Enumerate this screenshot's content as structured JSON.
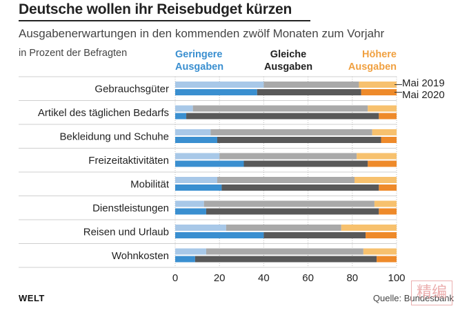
{
  "title": "Deutsche wollen ihr Reisebudget kürzen",
  "subtitle": "Ausgabenerwartungen in den kommenden zwölf Monaten zum Vorjahr",
  "unit_note": "in Prozent der Befragten",
  "legend": {
    "low": [
      "Geringere",
      "Ausgaben"
    ],
    "same": [
      "Gleiche",
      "Ausgaben"
    ],
    "high": [
      "Höhere",
      "Ausgaben"
    ],
    "series_2019": "Mai 2019",
    "series_2020": "Mai 2020"
  },
  "colors": {
    "low_2019": "#a8c8e8",
    "low_2020": "#3a8fd0",
    "same_2019": "#a9a9a9",
    "same_2020": "#595959",
    "high_2019": "#f7c16e",
    "high_2020": "#ee8a2a",
    "text": "#222222",
    "grid": "#bbbbbb"
  },
  "chart_data": {
    "type": "bar",
    "orientation": "horizontal",
    "stacked": true,
    "xlim": [
      0,
      100
    ],
    "xticks": [
      "0",
      "20",
      "40",
      "60",
      "80",
      "100"
    ],
    "categories": [
      "Gebrauchsgüter",
      "Artikel des täglichen Bedarfs",
      "Bekleidung und Schuhe",
      "Freizeitaktivitäten",
      "Mobilität",
      "Dienstleistungen",
      "Reisen und Urlaub",
      "Wohnkosten"
    ],
    "series": [
      {
        "name": "Mai 2019",
        "segments": {
          "Geringere Ausgaben": [
            40,
            8,
            16,
            20,
            19,
            13,
            23,
            14
          ],
          "Gleiche Ausgaben": [
            43,
            79,
            73,
            62,
            62,
            77,
            52,
            71
          ],
          "Höhere Ausgaben": [
            17,
            13,
            11,
            18,
            19,
            10,
            25,
            15
          ]
        }
      },
      {
        "name": "Mai 2020",
        "segments": {
          "Geringere Ausgaben": [
            37,
            5,
            19,
            31,
            21,
            14,
            40,
            9
          ],
          "Gleiche Ausgaben": [
            47,
            87,
            74,
            56,
            71,
            78,
            46,
            82
          ],
          "Höhere Ausgaben": [
            16,
            8,
            7,
            13,
            8,
            8,
            14,
            9
          ]
        }
      }
    ]
  },
  "source": "Quelle: Bundesbank",
  "brand": "WELT",
  "stamp_text": "精编"
}
